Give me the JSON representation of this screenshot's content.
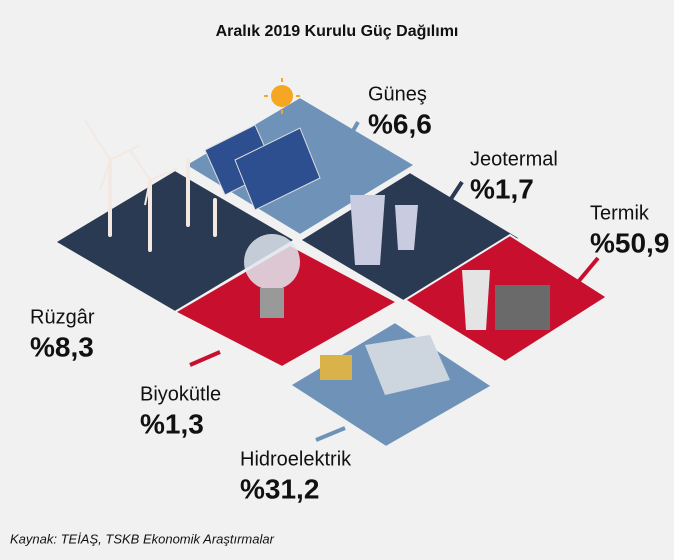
{
  "chart_data": {
    "type": "tiles",
    "title": "Aralık 2019 Kurulu Güç Dağılımı",
    "categories": [
      "Güneş",
      "Jeotermal",
      "Termik",
      "Rüzgâr",
      "Biyokütle",
      "Hidroelektrik"
    ],
    "values": [
      6.6,
      1.7,
      50.9,
      8.3,
      1.3,
      31.2
    ],
    "value_labels": [
      "%6,6",
      "%1,7",
      "%50,9",
      "%8,3",
      "%1,3",
      "%31,2"
    ],
    "colors": [
      "#6f93b8",
      "#2a3a52",
      "#c8102e",
      "#2a3a52",
      "#c8102e",
      "#6f93b8"
    ],
    "source": "Kaynak: TEİAŞ, TSKB Ekonomik Araştırmalar"
  }
}
